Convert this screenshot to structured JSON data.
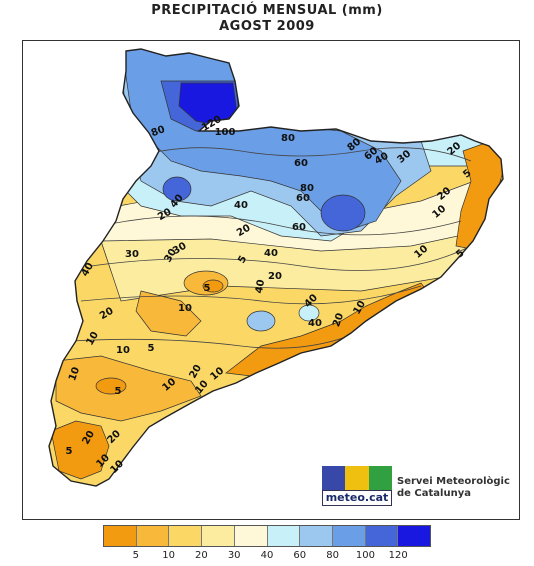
{
  "title": {
    "line1": "PRECIPITACIÓ MENSUAL (mm)",
    "line2": "AGOST 2009"
  },
  "colors": {
    "c_lt5": "#f29a10",
    "c_5_10": "#f8b83a",
    "c_10_20": "#fbd866",
    "c_20_30": "#fbeca0",
    "c_30_40": "#fff8d8",
    "c_40_60": "#c8f0f8",
    "c_60_80": "#9cc8f0",
    "c_80_100": "#6a9ee6",
    "c_100_120": "#4466d8",
    "c_gt120": "#1818e0",
    "logo_blue": "#3848a8",
    "logo_yellow": "#f0c010",
    "logo_green": "#30a040"
  },
  "map_labels": [
    "120",
    "100",
    "80",
    "80",
    "60",
    "80",
    "60",
    "80",
    "40",
    "30",
    "20",
    "5",
    "20",
    "10",
    "5",
    "10",
    "60",
    "60",
    "40",
    "40",
    "20",
    "30",
    "30",
    "40",
    "40",
    "20",
    "40",
    "20",
    "5",
    "10",
    "30",
    "40",
    "40",
    "20",
    "10",
    "5",
    "10",
    "5",
    "20",
    "10",
    "10",
    "20",
    "5",
    "10",
    "10",
    "20",
    "5",
    "10",
    "20",
    "10",
    "10"
  ],
  "logo": {
    "text": "meteo.cat"
  },
  "org": {
    "line1": "Servei Meteorològic",
    "line2": "de Catalunya"
  },
  "legend": {
    "ticks": [
      "5",
      "10",
      "20",
      "30",
      "40",
      "60",
      "80",
      "100",
      "120"
    ],
    "swatches": [
      "c_lt5",
      "c_5_10",
      "c_10_20",
      "c_20_30",
      "c_30_40",
      "c_40_60",
      "c_60_80",
      "c_80_100",
      "c_100_120",
      "c_gt120"
    ]
  }
}
